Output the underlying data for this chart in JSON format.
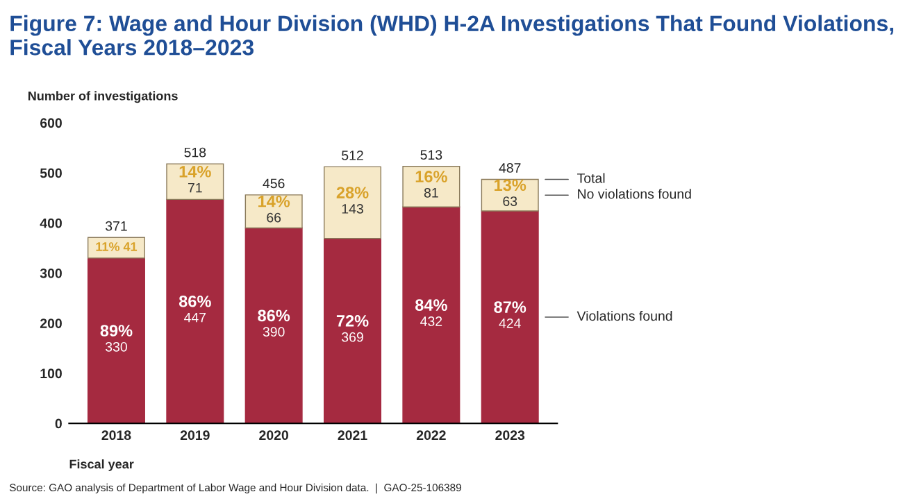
{
  "chart_data": {
    "type": "bar",
    "title": "Figure 7: Wage and Hour Division (WHD) H-2A Investigations That Found Violations, Fiscal Years 2018–2023",
    "ylabel": "Number of investigations",
    "xlabel": "Fiscal year",
    "categories": [
      "2018",
      "2019",
      "2020",
      "2021",
      "2022",
      "2023"
    ],
    "stacked": true,
    "series": [
      {
        "name": "Violations found",
        "color": "#a52a40",
        "values": [
          330,
          447,
          390,
          369,
          432,
          424
        ],
        "value_labels": [
          "89%\n330",
          "86%\n447",
          "86%\n390",
          "72%\n369",
          "84%\n432",
          "87%\n424"
        ]
      },
      {
        "name": "No violations found",
        "color": "#f6e9c8",
        "values": [
          41,
          71,
          66,
          143,
          81,
          63
        ],
        "value_labels": [
          "11% 41",
          "14%\n71",
          "14%\n66",
          "28%\n143",
          "16%\n81",
          "13%\n63"
        ]
      }
    ],
    "totals": [
      "371",
      "518",
      "456",
      "512",
      "513",
      "487"
    ],
    "ylim": [
      0,
      600
    ],
    "yticks": [
      0,
      100,
      200,
      300,
      400,
      500,
      600
    ],
    "grid": false,
    "legend": false,
    "annotations": [
      "Total",
      "Source: GAO analysis of Department of Labor Wage and Hour Division data.  |  GAO-25-106389"
    ]
  }
}
